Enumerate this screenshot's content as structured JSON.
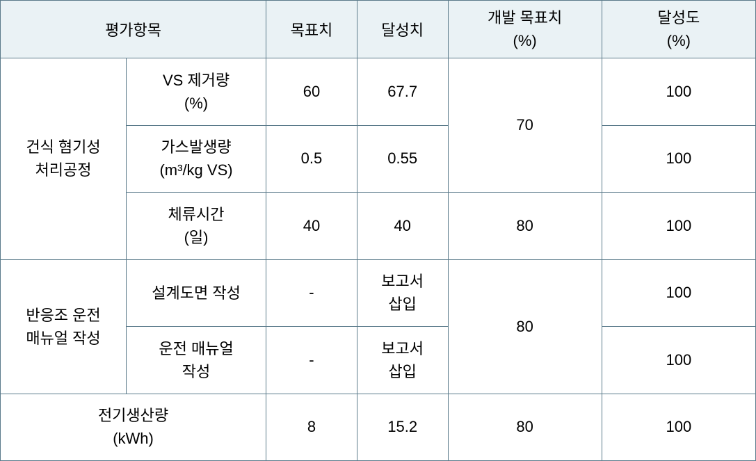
{
  "table": {
    "background_color": "#ffffff",
    "header_background": "#eaf2f5",
    "border_color": "#5a7a8a",
    "text_color": "#000000",
    "font_size": 22,
    "columns": {
      "eval_item": "평가항목",
      "target": "목표치",
      "achieved": "달성치",
      "dev_target": "개발 목표치\n(%)",
      "achievement_rate": "달성도\n(%)"
    },
    "column_widths": {
      "eval_item_group": 180,
      "eval_item_sub": 200,
      "target": 130,
      "achieved": 130,
      "dev_target": 220,
      "achievement_rate": 220
    },
    "groups": [
      {
        "name": "건식 혐기성\n처리공정",
        "rows": [
          {
            "sub": "VS 제거량\n(%)",
            "target": "60",
            "achieved": "67.7",
            "achievement_rate": "100"
          },
          {
            "sub": "가스발생량\n(m³/kg VS)",
            "target": "0.5",
            "achieved": "0.55",
            "achievement_rate": "100"
          },
          {
            "sub": "체류시간\n(일)",
            "target": "40",
            "achieved": "40",
            "achievement_rate": "100"
          }
        ],
        "dev_targets": [
          "70",
          "80"
        ]
      },
      {
        "name": "반응조 운전\n매뉴얼 작성",
        "rows": [
          {
            "sub": "설계도면 작성",
            "target": "-",
            "achieved": "보고서\n삽입",
            "achievement_rate": "100"
          },
          {
            "sub": "운전 매뉴얼\n작성",
            "target": "-",
            "achieved": "보고서\n삽입",
            "achievement_rate": "100"
          }
        ],
        "dev_targets": [
          "80"
        ]
      },
      {
        "name": "전기생산량\n(kWh)",
        "rows": [
          {
            "sub": null,
            "target": "8",
            "achieved": "15.2",
            "achievement_rate": "100"
          }
        ],
        "dev_targets": [
          "80"
        ]
      }
    ]
  }
}
